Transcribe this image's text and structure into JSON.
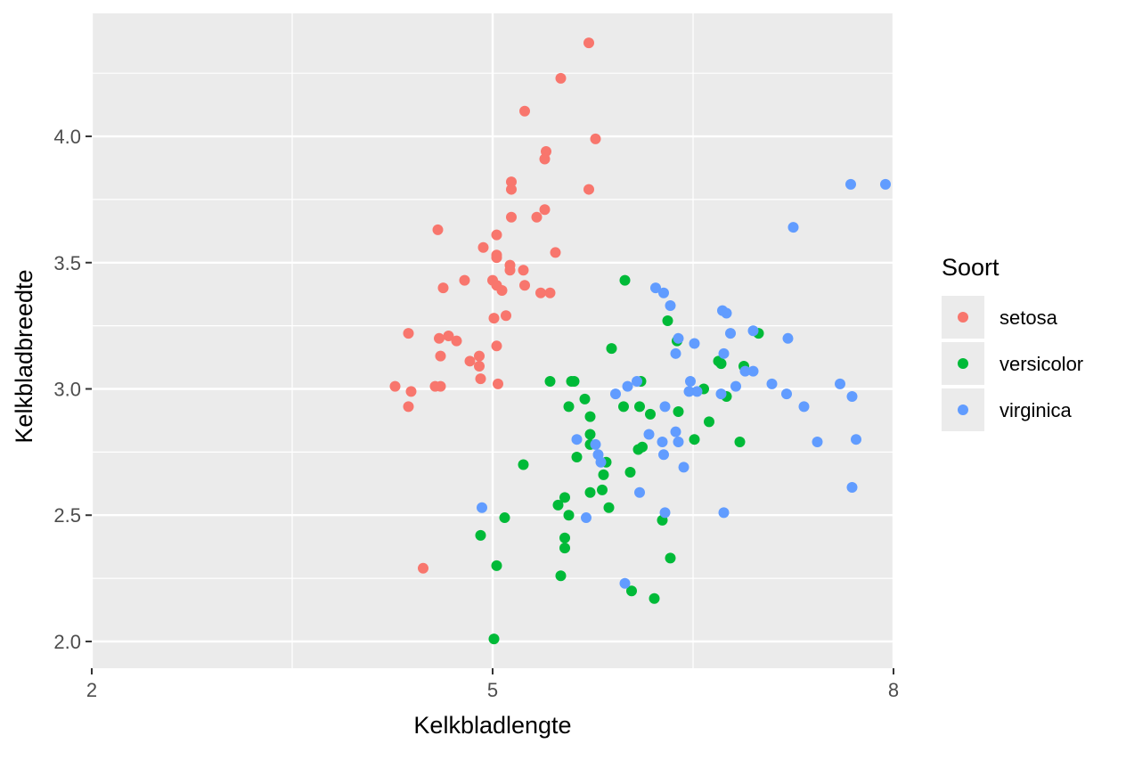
{
  "chart_data": {
    "type": "scatter",
    "title": "",
    "xlabel": "Kelkbladlengte",
    "ylabel": "Kelkbladbreedte",
    "xlim": [
      2,
      8
    ],
    "ylim": [
      1.894,
      4.487
    ],
    "xticks": [
      2,
      5,
      8
    ],
    "xtick_labels": [
      "2",
      "5",
      "8"
    ],
    "xminor": [
      3.5,
      6.5
    ],
    "yticks": [
      2.0,
      2.5,
      3.0,
      3.5,
      4.0
    ],
    "ytick_labels": [
      "2.0",
      "2.5",
      "3.0",
      "3.5",
      "4.0"
    ],
    "yminor": [
      2.25,
      2.75,
      3.25,
      3.75,
      4.25
    ],
    "grid": true,
    "legend": {
      "title": "Soort",
      "placement": "right"
    },
    "series": [
      {
        "name": "setosa",
        "color": "#F8766D",
        "points": [
          [
            5.72,
            4.37
          ],
          [
            5.51,
            4.23
          ],
          [
            5.24,
            4.1
          ],
          [
            5.77,
            3.99
          ],
          [
            5.4,
            3.94
          ],
          [
            5.39,
            3.91
          ],
          [
            5.14,
            3.82
          ],
          [
            5.14,
            3.79
          ],
          [
            5.72,
            3.79
          ],
          [
            5.39,
            3.71
          ],
          [
            5.14,
            3.68
          ],
          [
            5.33,
            3.68
          ],
          [
            4.59,
            3.63
          ],
          [
            4.93,
            3.56
          ],
          [
            5.03,
            3.61
          ],
          [
            5.47,
            3.54
          ],
          [
            5.03,
            3.53
          ],
          [
            5.03,
            3.52
          ],
          [
            5.13,
            3.49
          ],
          [
            5.13,
            3.47
          ],
          [
            5.23,
            3.47
          ],
          [
            4.63,
            3.4
          ],
          [
            4.79,
            3.43
          ],
          [
            5.0,
            3.43
          ],
          [
            5.03,
            3.41
          ],
          [
            5.07,
            3.39
          ],
          [
            5.24,
            3.41
          ],
          [
            5.36,
            3.38
          ],
          [
            5.43,
            3.38
          ],
          [
            5.1,
            3.29
          ],
          [
            4.37,
            3.22
          ],
          [
            5.01,
            3.28
          ],
          [
            4.6,
            3.2
          ],
          [
            4.67,
            3.21
          ],
          [
            4.73,
            3.19
          ],
          [
            4.61,
            3.13
          ],
          [
            4.83,
            3.11
          ],
          [
            4.9,
            3.13
          ],
          [
            4.9,
            3.09
          ],
          [
            5.03,
            3.17
          ],
          [
            4.91,
            3.04
          ],
          [
            4.57,
            3.01
          ],
          [
            4.61,
            3.01
          ],
          [
            5.04,
            3.02
          ],
          [
            4.27,
            3.01
          ],
          [
            4.39,
            2.99
          ],
          [
            4.37,
            2.93
          ],
          [
            4.48,
            2.29
          ]
        ]
      },
      {
        "name": "versicolor",
        "color": "#00BA38",
        "points": [
          [
            5.99,
            3.43
          ],
          [
            6.31,
            3.27
          ],
          [
            6.99,
            3.22
          ],
          [
            6.38,
            3.19
          ],
          [
            5.89,
            3.16
          ],
          [
            6.69,
            3.11
          ],
          [
            6.71,
            3.1
          ],
          [
            6.88,
            3.09
          ],
          [
            6.58,
            3.0
          ],
          [
            6.75,
            2.97
          ],
          [
            5.43,
            3.03
          ],
          [
            5.59,
            3.03
          ],
          [
            5.61,
            3.03
          ],
          [
            5.69,
            2.96
          ],
          [
            6.11,
            3.03
          ],
          [
            5.98,
            2.93
          ],
          [
            6.1,
            2.93
          ],
          [
            5.57,
            2.93
          ],
          [
            5.73,
            2.89
          ],
          [
            6.18,
            2.9
          ],
          [
            6.39,
            2.91
          ],
          [
            6.62,
            2.87
          ],
          [
            5.73,
            2.82
          ],
          [
            5.73,
            2.78
          ],
          [
            6.12,
            2.77
          ],
          [
            6.09,
            2.76
          ],
          [
            6.51,
            2.8
          ],
          [
            6.85,
            2.79
          ],
          [
            5.63,
            2.73
          ],
          [
            5.85,
            2.71
          ],
          [
            5.23,
            2.7
          ],
          [
            5.83,
            2.66
          ],
          [
            6.03,
            2.67
          ],
          [
            5.73,
            2.59
          ],
          [
            5.82,
            2.6
          ],
          [
            5.54,
            2.57
          ],
          [
            5.49,
            2.54
          ],
          [
            5.57,
            2.5
          ],
          [
            5.87,
            2.53
          ],
          [
            5.09,
            2.49
          ],
          [
            6.27,
            2.48
          ],
          [
            4.91,
            2.42
          ],
          [
            5.54,
            2.41
          ],
          [
            5.54,
            2.37
          ],
          [
            5.03,
            2.3
          ],
          [
            6.33,
            2.33
          ],
          [
            5.51,
            2.26
          ],
          [
            6.04,
            2.2
          ],
          [
            6.21,
            2.17
          ],
          [
            5.01,
            2.01
          ]
        ]
      },
      {
        "name": "virginica",
        "color": "#619CFF",
        "points": [
          [
            7.94,
            3.81
          ],
          [
            7.68,
            3.81
          ],
          [
            7.25,
            3.64
          ],
          [
            6.22,
            3.4
          ],
          [
            6.28,
            3.38
          ],
          [
            6.33,
            3.33
          ],
          [
            6.72,
            3.31
          ],
          [
            6.75,
            3.3
          ],
          [
            6.95,
            3.23
          ],
          [
            6.78,
            3.22
          ],
          [
            6.39,
            3.2
          ],
          [
            6.51,
            3.18
          ],
          [
            7.21,
            3.2
          ],
          [
            6.37,
            3.14
          ],
          [
            6.73,
            3.14
          ],
          [
            6.89,
            3.07
          ],
          [
            6.95,
            3.07
          ],
          [
            6.82,
            3.01
          ],
          [
            7.09,
            3.02
          ],
          [
            7.6,
            3.02
          ],
          [
            7.69,
            2.97
          ],
          [
            7.2,
            2.98
          ],
          [
            7.33,
            2.93
          ],
          [
            6.48,
            3.03
          ],
          [
            6.47,
            2.99
          ],
          [
            6.53,
            2.99
          ],
          [
            6.71,
            2.98
          ],
          [
            5.92,
            2.98
          ],
          [
            6.01,
            3.01
          ],
          [
            6.08,
            3.03
          ],
          [
            6.29,
            2.93
          ],
          [
            6.37,
            2.83
          ],
          [
            6.39,
            2.79
          ],
          [
            6.17,
            2.82
          ],
          [
            6.27,
            2.79
          ],
          [
            7.43,
            2.79
          ],
          [
            7.72,
            2.8
          ],
          [
            5.63,
            2.8
          ],
          [
            5.77,
            2.78
          ],
          [
            5.79,
            2.74
          ],
          [
            5.81,
            2.71
          ],
          [
            6.28,
            2.74
          ],
          [
            6.43,
            2.69
          ],
          [
            6.1,
            2.59
          ],
          [
            4.92,
            2.53
          ],
          [
            5.7,
            2.49
          ],
          [
            6.29,
            2.51
          ],
          [
            6.73,
            2.51
          ],
          [
            7.69,
            2.61
          ],
          [
            5.99,
            2.23
          ]
        ]
      }
    ]
  }
}
